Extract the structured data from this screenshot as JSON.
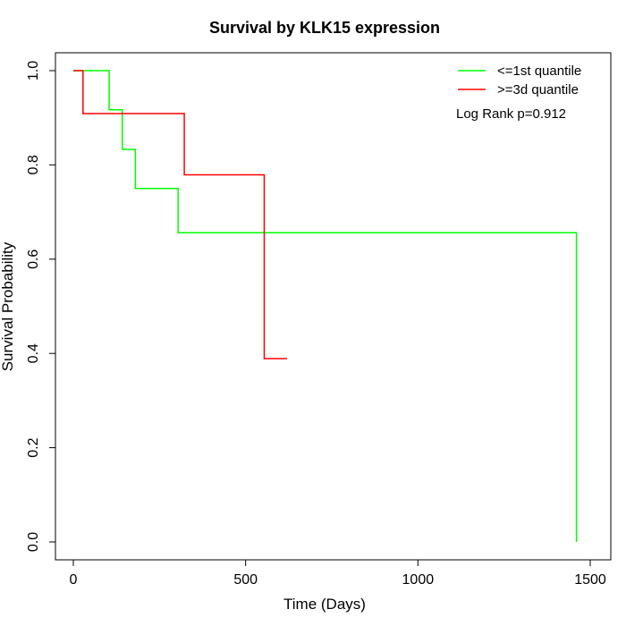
{
  "chart_data": {
    "type": "line",
    "title": "Survival by KLK15 expression",
    "xlabel": "Time (Days)",
    "ylabel": "Survival Probability",
    "xlim": [
      0,
      1500
    ],
    "ylim": [
      0,
      1.0
    ],
    "x_ticks": [
      "0",
      "500",
      "1000",
      "1500"
    ],
    "y_ticks": [
      "0.0",
      "0.2",
      "0.4",
      "0.6",
      "0.8",
      "1.0"
    ],
    "legend_position": "top-right",
    "annotation": "Log Rank p=0.912",
    "series": [
      {
        "name": "<=1st quantile",
        "color": "#00ff00",
        "steps": [
          {
            "x": 0,
            "y": 1.0
          },
          {
            "x": 104,
            "y": 0.917
          },
          {
            "x": 142,
            "y": 0.833
          },
          {
            "x": 180,
            "y": 0.75
          },
          {
            "x": 304,
            "y": 0.656
          },
          {
            "x": 1460,
            "y": 0.0
          }
        ]
      },
      {
        "name": ">=3d quantile",
        "color": "#ff0000",
        "steps": [
          {
            "x": 0,
            "y": 1.0
          },
          {
            "x": 28,
            "y": 0.909
          },
          {
            "x": 322,
            "y": 0.779
          },
          {
            "x": 554,
            "y": 0.389
          },
          {
            "x": 620,
            "y": 0.389
          }
        ]
      }
    ]
  }
}
